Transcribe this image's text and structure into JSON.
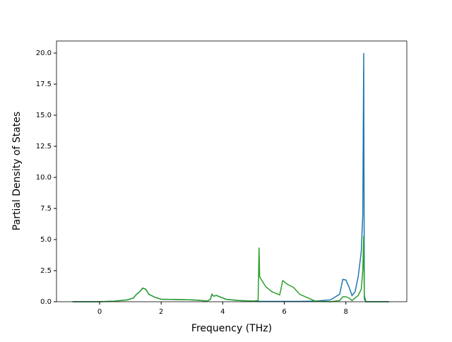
{
  "chart_data": {
    "type": "line",
    "xlabel": "Frequency (THz)",
    "ylabel": "Partial Density of States",
    "x": [
      -0.88,
      0,
      0.5,
      0.9,
      1.1,
      1.2,
      1.3,
      1.4,
      1.5,
      1.6,
      1.8,
      2.0,
      3.0,
      3.3,
      3.5,
      3.6,
      3.65,
      3.7,
      3.8,
      3.9,
      4.1,
      4.5,
      5.0,
      5.15,
      5.18,
      5.2,
      5.25,
      5.4,
      5.6,
      5.85,
      5.95,
      6.1,
      6.3,
      6.5,
      7.0,
      7.5,
      7.8,
      7.9,
      8.0,
      8.1,
      8.2,
      8.3,
      8.4,
      8.5,
      8.55,
      8.58,
      8.6,
      8.65,
      9.4
    ],
    "series": [
      {
        "color": "#1f77b4",
        "values": [
          0,
          0,
          0.05,
          0.15,
          0.3,
          0.6,
          0.8,
          1.1,
          1.0,
          0.6,
          0.35,
          0.2,
          0.15,
          0.1,
          0.05,
          0.2,
          0.6,
          0.45,
          0.5,
          0.4,
          0.2,
          0.1,
          0.05,
          0.03,
          0.03,
          0.03,
          0.03,
          0.03,
          0.03,
          0.03,
          0.03,
          0.03,
          0.03,
          0.03,
          0.05,
          0.15,
          0.6,
          1.8,
          1.75,
          1.2,
          0.5,
          0.8,
          2.0,
          4.0,
          7.0,
          20.0,
          0.5,
          0,
          0
        ]
      },
      {
        "color": "#2ca02c",
        "values": [
          0,
          0,
          0.05,
          0.15,
          0.3,
          0.6,
          0.8,
          1.1,
          1.0,
          0.6,
          0.35,
          0.2,
          0.15,
          0.1,
          0.05,
          0.2,
          0.6,
          0.45,
          0.5,
          0.4,
          0.2,
          0.1,
          0.05,
          0.1,
          4.35,
          2.0,
          1.8,
          1.2,
          0.8,
          0.55,
          1.7,
          1.4,
          1.15,
          0.6,
          0.05,
          0,
          0.1,
          0.4,
          0.4,
          0.3,
          0.1,
          0.3,
          0.5,
          1.0,
          2.5,
          5.3,
          0.2,
          0,
          0
        ]
      }
    ],
    "xlim": [
      -1.4,
      9.98
    ],
    "ylim": [
      0,
      20.97
    ],
    "xticks": [
      0,
      2,
      4,
      6,
      8
    ],
    "yticks": [
      {
        "value": 0,
        "label": "0.0"
      },
      {
        "value": 2.5,
        "label": "2.5"
      },
      {
        "value": 5,
        "label": "5.0"
      },
      {
        "value": 7.5,
        "label": "7.5"
      },
      {
        "value": 10,
        "label": "10.0"
      },
      {
        "value": 12.5,
        "label": "12.5"
      },
      {
        "value": 15,
        "label": "15.0"
      },
      {
        "value": 17.5,
        "label": "17.5"
      },
      {
        "value": 20,
        "label": "20.0"
      }
    ]
  }
}
